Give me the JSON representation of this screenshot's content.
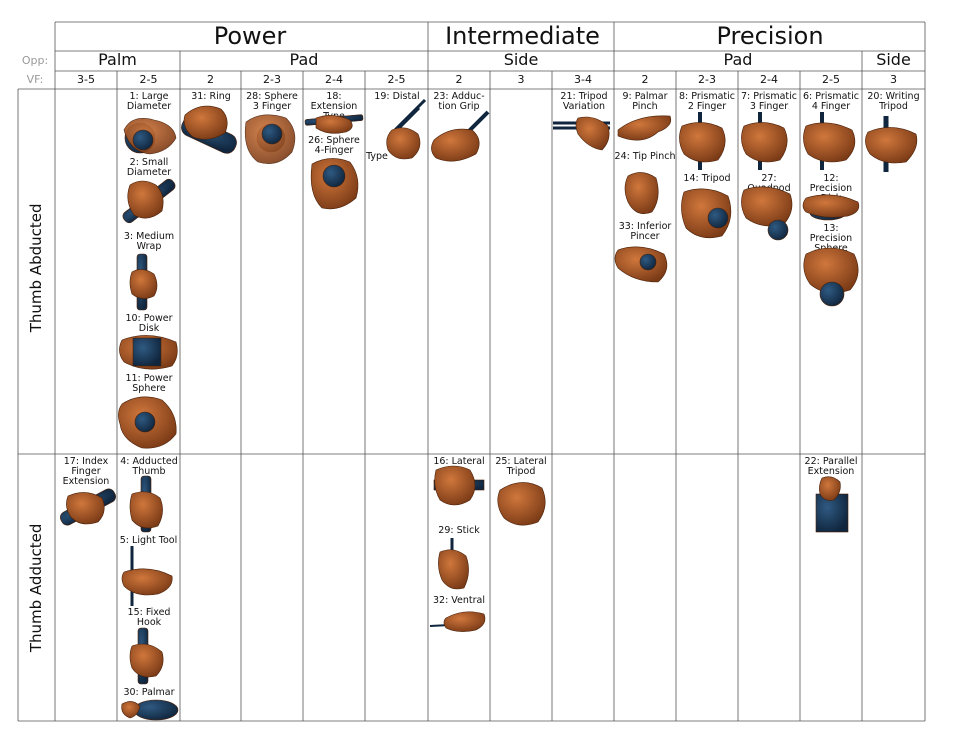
{
  "header": {
    "categories": [
      "Power",
      "Intermediate",
      "Precision"
    ],
    "opp_label": "Opp:",
    "vf_label": "VF:",
    "opp_groups": [
      "Palm",
      "Pad",
      "Side",
      "Pad",
      "Side"
    ],
    "vf_values": [
      "3-5",
      "2-5",
      "2",
      "2-3",
      "2-4",
      "2-5",
      "2",
      "3",
      "3-4",
      "2",
      "2-3",
      "2-4",
      "2-5",
      "3"
    ]
  },
  "rows": [
    "Thumb Abducted",
    "Thumb Adducted"
  ],
  "grasps": {
    "g1": "1: Large Diameter",
    "g2": "2: Small Diameter",
    "g3": "3: Medium Wrap",
    "g10": "10: Power Disk",
    "g11": "11: Power Sphere",
    "g31": "31: Ring",
    "g28": "28: Sphere 3 Finger",
    "g18": "18: Extension Type",
    "g26": "26: Sphere 4-Finger",
    "g19": "19: Distal",
    "g19b": "Type",
    "g23": "23: Adduc- tion Grip",
    "g21": "21: Tripod Variation",
    "g9": "9: Palmar Pinch",
    "g24": "24: Tip Pinch",
    "g33": "33: Inferior Pincer",
    "g8": "8: Prismatic 2 Finger",
    "g14": "14: Tripod",
    "g7": "7: Prismatic 3 Finger",
    "g27": "27: Quadpod",
    "g6": "6: Prismatic 4 Finger",
    "g12": "12: Precision Disk",
    "g13": "13: Precision Sphere",
    "g20": "20: Writing Tripod",
    "g17": "17: Index Finger Extension",
    "g4": "4: Adducted Thumb",
    "g5": "5: Light Tool",
    "g15": "15: Fixed Hook",
    "g30": "30: Palmar",
    "g16": "16: Lateral",
    "g29": "29: Stick",
    "g32": "32: Ventral",
    "g25": "25: Lateral Tripod",
    "g22": "22: Parallel Extension"
  },
  "colors": {
    "skin": "#b5602c",
    "skin_dark": "#7a3a16",
    "object": "#1c3a5a",
    "grid": "#555555"
  }
}
